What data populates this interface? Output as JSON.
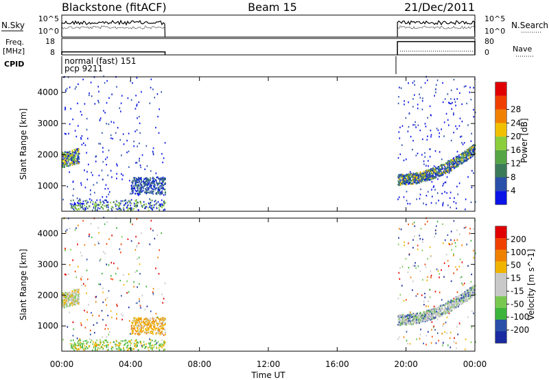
{
  "header": {
    "title_left": "Blackstone (fitACF)",
    "title_center": "Beam 15",
    "title_right": "21/Dec/2011"
  },
  "colors": {
    "power_scale": [
      "#0a14e6",
      "#2a4fa8",
      "#3a7a58",
      "#55a545",
      "#8ccd3c",
      "#f0c000",
      "#f08000",
      "#f04000",
      "#e00000"
    ],
    "velocity_scale": [
      "#e00000",
      "#f04000",
      "#f08000",
      "#f0b400",
      "#c8c8c8",
      "#c8c8c8",
      "#78c850",
      "#3cb43c",
      "#2a4fa8",
      "#1a2aa0"
    ]
  },
  "chart_data": [
    {
      "type": "line",
      "name_left": "N.Sky",
      "name_right": "N.Search",
      "left_ticks": [
        "10^5",
        "10^0"
      ],
      "right_ticks": [
        "10^5",
        "10^0"
      ],
      "segments": [
        {
          "x_start": "00:00",
          "x_end": "06:00"
        },
        {
          "x_start": "19:30",
          "x_end": "24:00"
        }
      ]
    },
    {
      "type": "line",
      "name_left": "Freq.",
      "unit_left": "[MHz]",
      "name_right": "Nave",
      "left_ticks": [
        "18",
        "8"
      ],
      "right_ticks": [
        "80",
        "0"
      ],
      "freq_level": 10,
      "nave_level": 20,
      "segments": [
        {
          "x_start": "00:00",
          "x_end": "06:00"
        },
        {
          "x_start": "19:30",
          "x_end": "24:00"
        }
      ]
    },
    {
      "type": "table",
      "label": "CPID",
      "lines": [
        "normal (fast) 151",
        "pcp 9211"
      ]
    },
    {
      "type": "heatmap",
      "ylabel": "Slant Range [km]",
      "y_ticks": [
        "1000",
        "2000",
        "3000",
        "4000"
      ],
      "ylim": [
        180,
        4500
      ],
      "colorbar_label": "Power [dB]",
      "colorbar_ticks": [
        "4",
        "8",
        "12",
        "16",
        "20",
        "24",
        "28"
      ],
      "clim": [
        0,
        32
      ]
    },
    {
      "type": "heatmap",
      "ylabel": "Slant Range [km]",
      "y_ticks": [
        "1000",
        "2000",
        "3000",
        "4000"
      ],
      "ylim": [
        180,
        4500
      ],
      "colorbar_label": "Velocity [m s^-1]",
      "colorbar_ticks": [
        "200",
        "100",
        "50",
        "15",
        "-15",
        "-50",
        "-100",
        "-200"
      ]
    }
  ],
  "xaxis": {
    "ticks": [
      "00:00",
      "04:00",
      "08:00",
      "12:00",
      "16:00",
      "20:00",
      "00:00"
    ],
    "xlabel": "Time UT",
    "xlim_hours": [
      0,
      24
    ]
  }
}
